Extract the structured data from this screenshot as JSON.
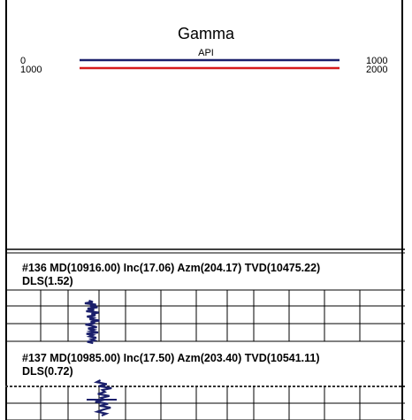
{
  "header": {
    "title": "Gamma",
    "unit": "API",
    "tracks": [
      {
        "name": "track-1",
        "left": "0",
        "right": "1000",
        "color": "#1a1f6b"
      },
      {
        "name": "track-2",
        "left": "1000",
        "right": "2000",
        "color": "#d61a1a"
      }
    ]
  },
  "surveys": [
    {
      "line1": "#136 MD(10916.00) Inc(17.06) Azm(204.17) TVD(10475.22)",
      "line2": "DLS(1.52)"
    },
    {
      "line1": "#137 MD(10985.00) Inc(17.50) Azm(203.40) TVD(10541.11)",
      "line2": "DLS(0.72)"
    }
  ],
  "chart_data": {
    "type": "line",
    "title": "Gamma",
    "xlabel": "API",
    "scales": [
      {
        "min": 0,
        "max": 1000,
        "color": "#1a1f6b"
      },
      {
        "min": 1000,
        "max": 2000,
        "color": "#d61a1a"
      }
    ],
    "series": [
      {
        "values": [
          55,
          70,
          40,
          82,
          60,
          88,
          50,
          75,
          45,
          92,
          65,
          80,
          48,
          72,
          58,
          95,
          62,
          78,
          42,
          68,
          85,
          52,
          74,
          60,
          90,
          46,
          70,
          58,
          83,
          64,
          76,
          49,
          71
        ]
      },
      {
        "values": [
          60,
          48,
          80,
          55,
          95,
          66,
          74,
          52,
          88,
          62,
          70,
          44,
          84,
          58,
          92,
          68,
          50,
          78,
          64
        ]
      }
    ],
    "grid": true
  }
}
